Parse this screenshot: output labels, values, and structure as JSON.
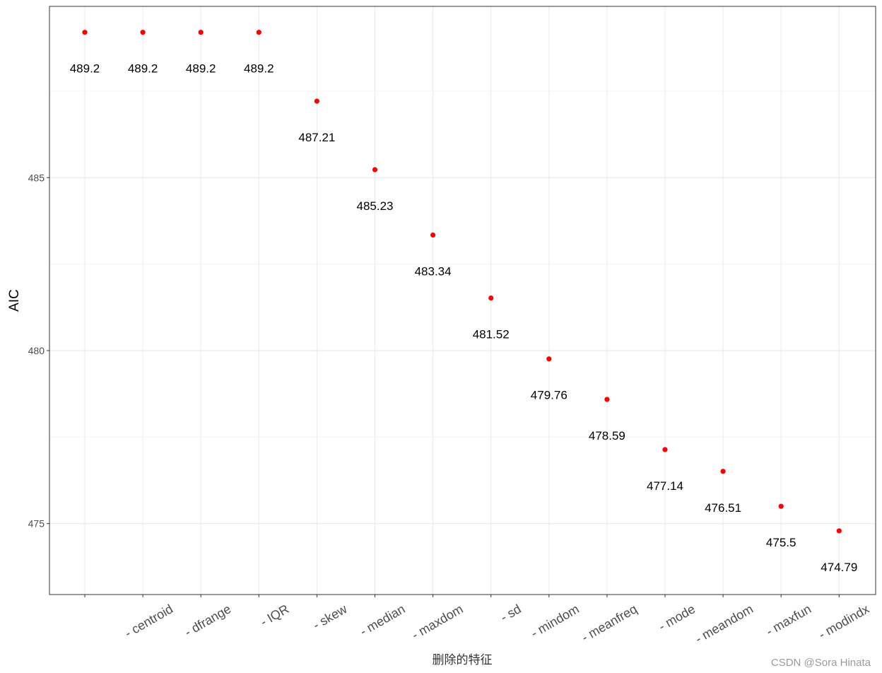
{
  "chart_data": {
    "type": "scatter",
    "title": "",
    "xlabel": "删除的特征",
    "ylabel": "AIC",
    "categories": [
      "",
      "- centroid",
      "- dfrange",
      "- IQR",
      "- skew",
      "- median",
      "- maxdom",
      "- sd",
      "- mindom",
      "- meanfreq",
      "- mode",
      "- meandom",
      "- maxfun",
      "- modindx"
    ],
    "values": [
      489.2,
      489.2,
      489.2,
      489.2,
      487.21,
      485.23,
      483.34,
      481.52,
      479.76,
      478.59,
      477.14,
      476.51,
      475.5,
      474.79
    ],
    "data_labels": [
      "489.2",
      "489.2",
      "489.2",
      "489.2",
      "487.21",
      "485.23",
      "483.34",
      "481.52",
      "479.76",
      "478.59",
      "477.14",
      "476.51",
      "475.5",
      "474.79"
    ],
    "yticks": [
      475,
      480,
      485
    ],
    "ytick_labels": [
      "475",
      "480",
      "485"
    ],
    "ylim": [
      472.95,
      489.95
    ],
    "point_color": "#ff0000",
    "grid": true,
    "legend": "none",
    "x_tick_rotation_deg": -30
  },
  "watermark": "CSDN @Sora Hinata"
}
